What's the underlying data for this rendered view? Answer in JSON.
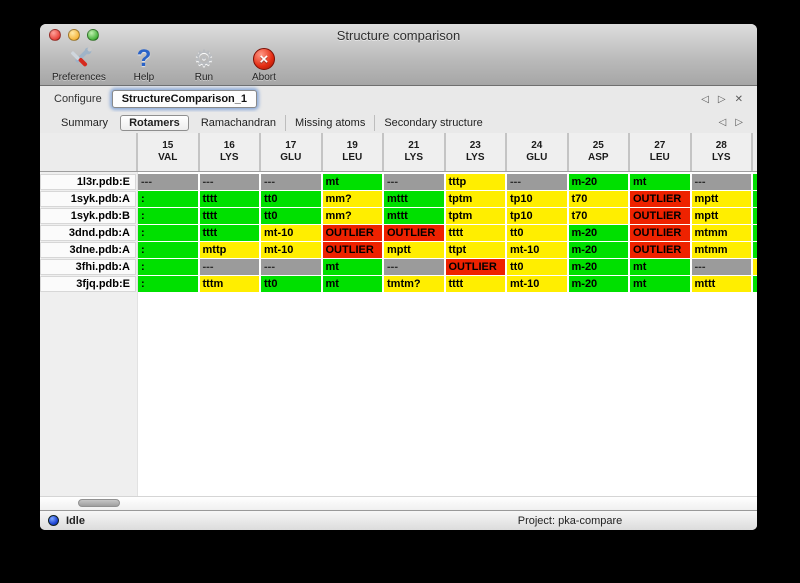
{
  "window": {
    "title": "Structure comparison"
  },
  "toolbar": {
    "buttons": [
      {
        "label": "Preferences",
        "icon": "tools-icon"
      },
      {
        "label": "Help",
        "icon": "help-icon",
        "glyph": "?"
      },
      {
        "label": "Run",
        "icon": "gear-icon",
        "glyph": "⚙"
      },
      {
        "label": "Abort",
        "icon": "abort-icon",
        "glyph": "×"
      }
    ]
  },
  "configure": {
    "label": "Configure",
    "value": "StructureComparison_1",
    "nav": {
      "prev": "◁",
      "next": "▷",
      "close": "✕"
    }
  },
  "tabs": {
    "items": [
      {
        "label": "Summary",
        "active": false
      },
      {
        "label": "Rotamers",
        "active": true
      },
      {
        "label": "Ramachandran",
        "active": false
      },
      {
        "label": "Missing atoms",
        "active": false
      },
      {
        "label": "Secondary structure",
        "active": false
      }
    ],
    "nav": {
      "prev": "◁",
      "next": "▷"
    }
  },
  "table": {
    "colors": {
      "green": "#00e000",
      "yellow": "#ffee00",
      "red": "#ee2200",
      "gray": "#9b9b9b"
    },
    "columns": [
      {
        "number": "15",
        "residue": "VAL"
      },
      {
        "number": "16",
        "residue": "LYS"
      },
      {
        "number": "17",
        "residue": "GLU"
      },
      {
        "number": "19",
        "residue": "LEU"
      },
      {
        "number": "21",
        "residue": "LYS"
      },
      {
        "number": "23",
        "residue": "LYS"
      },
      {
        "number": "24",
        "residue": "GLU"
      },
      {
        "number": "25",
        "residue": "ASP"
      },
      {
        "number": "27",
        "residue": "LEU"
      },
      {
        "number": "28",
        "residue": "LYS"
      }
    ],
    "rows": [
      {
        "label": "1l3r.pdb:E",
        "edge": "green",
        "cells": [
          {
            "text": "---",
            "color": "gray"
          },
          {
            "text": "---",
            "color": "gray"
          },
          {
            "text": "---",
            "color": "gray"
          },
          {
            "text": "mt",
            "color": "green"
          },
          {
            "text": "---",
            "color": "gray"
          },
          {
            "text": "tttp",
            "color": "yellow"
          },
          {
            "text": "---",
            "color": "gray"
          },
          {
            "text": "m-20",
            "color": "green"
          },
          {
            "text": "mt",
            "color": "green"
          },
          {
            "text": "---",
            "color": "gray"
          }
        ]
      },
      {
        "label": "1syk.pdb:A",
        "edge": "green",
        "cells": [
          {
            "text": ":",
            "color": "green"
          },
          {
            "text": "tttt",
            "color": "green"
          },
          {
            "text": "tt0",
            "color": "green"
          },
          {
            "text": "mm?",
            "color": "yellow"
          },
          {
            "text": "mttt",
            "color": "green"
          },
          {
            "text": "tptm",
            "color": "yellow"
          },
          {
            "text": "tp10",
            "color": "yellow"
          },
          {
            "text": "t70",
            "color": "yellow"
          },
          {
            "text": "OUTLIER",
            "color": "red"
          },
          {
            "text": "mptt",
            "color": "yellow"
          }
        ]
      },
      {
        "label": "1syk.pdb:B",
        "edge": "green",
        "cells": [
          {
            "text": ":",
            "color": "green"
          },
          {
            "text": "tttt",
            "color": "green"
          },
          {
            "text": "tt0",
            "color": "green"
          },
          {
            "text": "mm?",
            "color": "yellow"
          },
          {
            "text": "mttt",
            "color": "green"
          },
          {
            "text": "tptm",
            "color": "yellow"
          },
          {
            "text": "tp10",
            "color": "yellow"
          },
          {
            "text": "t70",
            "color": "yellow"
          },
          {
            "text": "OUTLIER",
            "color": "red"
          },
          {
            "text": "mptt",
            "color": "yellow"
          }
        ]
      },
      {
        "label": "3dnd.pdb:A",
        "edge": "green",
        "cells": [
          {
            "text": ":",
            "color": "green"
          },
          {
            "text": "tttt",
            "color": "green"
          },
          {
            "text": "mt-10",
            "color": "yellow"
          },
          {
            "text": "OUTLIER",
            "color": "red"
          },
          {
            "text": "OUTLIER",
            "color": "red"
          },
          {
            "text": "tttt",
            "color": "yellow"
          },
          {
            "text": "tt0",
            "color": "yellow"
          },
          {
            "text": "m-20",
            "color": "green"
          },
          {
            "text": "OUTLIER",
            "color": "red"
          },
          {
            "text": "mtmm",
            "color": "yellow"
          }
        ]
      },
      {
        "label": "3dne.pdb:A",
        "edge": "green",
        "cells": [
          {
            "text": ":",
            "color": "green"
          },
          {
            "text": "mttp",
            "color": "yellow"
          },
          {
            "text": "mt-10",
            "color": "yellow"
          },
          {
            "text": "OUTLIER",
            "color": "red"
          },
          {
            "text": "mptt",
            "color": "yellow"
          },
          {
            "text": "ttpt",
            "color": "yellow"
          },
          {
            "text": "mt-10",
            "color": "yellow"
          },
          {
            "text": "m-20",
            "color": "green"
          },
          {
            "text": "OUTLIER",
            "color": "red"
          },
          {
            "text": "mtmm",
            "color": "yellow"
          }
        ]
      },
      {
        "label": "3fhi.pdb:A",
        "edge": "yellow",
        "cells": [
          {
            "text": ":",
            "color": "green"
          },
          {
            "text": "---",
            "color": "gray"
          },
          {
            "text": "---",
            "color": "gray"
          },
          {
            "text": "mt",
            "color": "green"
          },
          {
            "text": "---",
            "color": "gray"
          },
          {
            "text": "OUTLIER",
            "color": "red"
          },
          {
            "text": "tt0",
            "color": "yellow"
          },
          {
            "text": "m-20",
            "color": "green"
          },
          {
            "text": "mt",
            "color": "green"
          },
          {
            "text": "---",
            "color": "gray"
          }
        ]
      },
      {
        "label": "3fjq.pdb:E",
        "edge": "green",
        "cells": [
          {
            "text": ":",
            "color": "green"
          },
          {
            "text": "tttm",
            "color": "yellow"
          },
          {
            "text": "tt0",
            "color": "green"
          },
          {
            "text": "mt",
            "color": "green"
          },
          {
            "text": "tmtm?",
            "color": "yellow"
          },
          {
            "text": "tttt",
            "color": "yellow"
          },
          {
            "text": "mt-10",
            "color": "yellow"
          },
          {
            "text": "m-20",
            "color": "green"
          },
          {
            "text": "mt",
            "color": "green"
          },
          {
            "text": "mttt",
            "color": "yellow"
          }
        ]
      }
    ]
  },
  "statusbar": {
    "status": "Idle",
    "project": "Project: pka-compare"
  }
}
